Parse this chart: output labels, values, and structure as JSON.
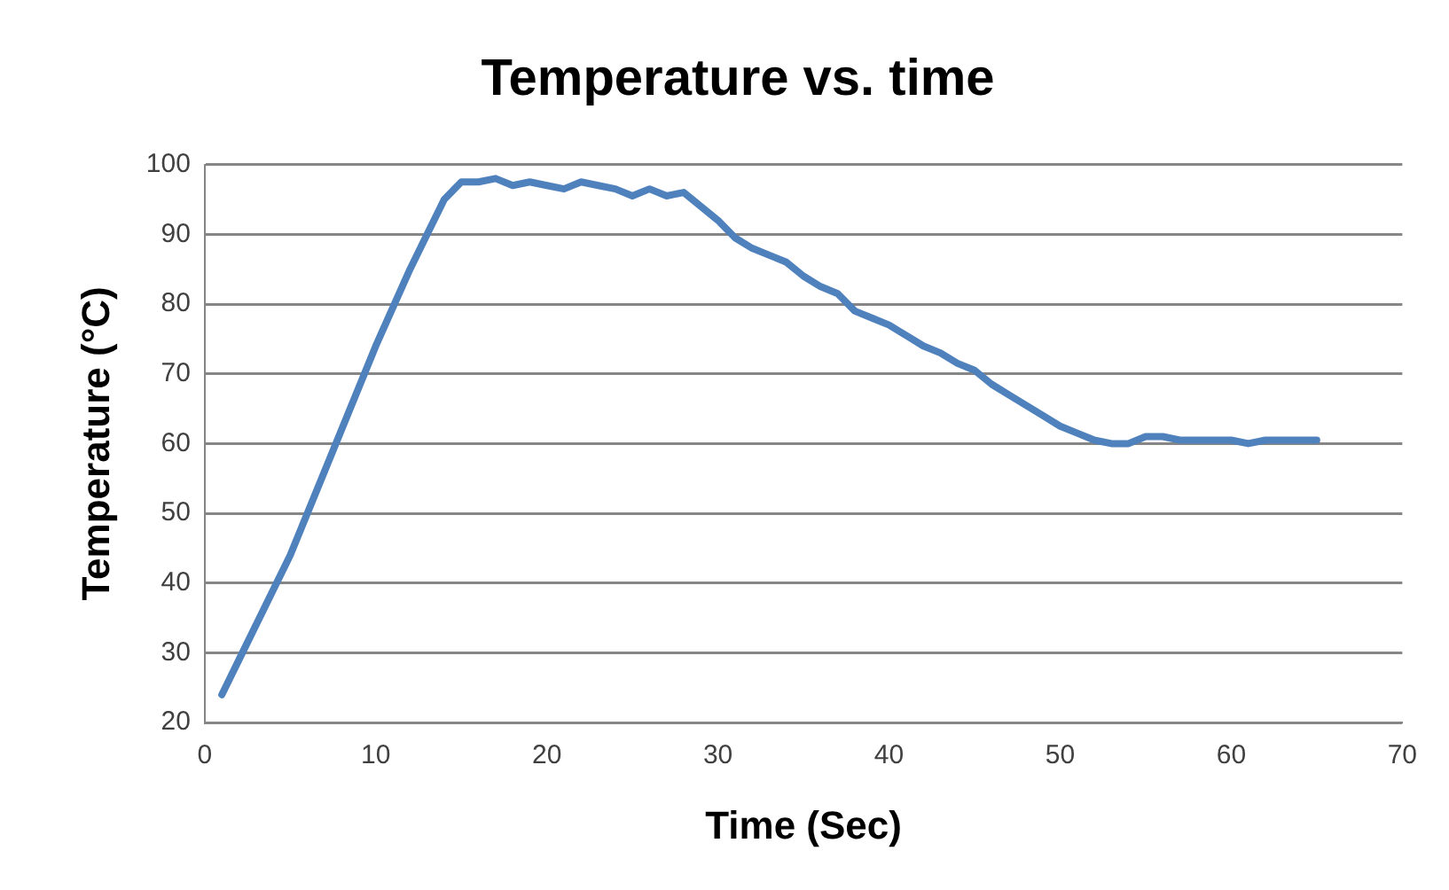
{
  "chart_data": {
    "type": "line",
    "title": "Temperature vs. time",
    "xlabel": "Time (Sec)",
    "ylabel": "Temperature (°C)",
    "series": [
      {
        "color": "#4f81bd",
        "x": [
          1,
          2,
          5,
          10,
          12,
          14,
          15,
          16,
          17,
          18,
          19,
          20,
          21,
          22,
          23,
          24,
          25,
          26,
          27,
          28,
          29,
          30,
          31,
          32,
          33,
          34,
          35,
          36,
          37,
          38,
          39,
          40,
          41,
          42,
          43,
          44,
          45,
          46,
          47,
          48,
          49,
          50,
          51,
          52,
          53,
          54,
          55,
          56,
          57,
          58,
          59,
          60,
          61,
          62,
          63,
          64,
          65
        ],
        "values": [
          24,
          29,
          44,
          74,
          85,
          95,
          97.5,
          97.5,
          98,
          97,
          97.5,
          97,
          96.5,
          97.5,
          97,
          96.5,
          95.5,
          96.5,
          95.5,
          96,
          94,
          92,
          89.5,
          88,
          87,
          86,
          84,
          82.5,
          81.5,
          79,
          78,
          77,
          75.5,
          74,
          73,
          71.5,
          70.5,
          68.5,
          67,
          65.5,
          64,
          62.5,
          61.5,
          60.5,
          60,
          60,
          61,
          61,
          60.5,
          60.5,
          60.5,
          60.5,
          60,
          60.5,
          60.5,
          60.5,
          60.5
        ]
      }
    ],
    "xlim": [
      0,
      70
    ],
    "xticks": [
      0,
      10,
      20,
      30,
      40,
      50,
      60,
      70
    ],
    "ylim": [
      20,
      100
    ],
    "yticks": [
      20,
      30,
      40,
      50,
      60,
      70,
      80,
      90,
      100
    ],
    "grid": "y",
    "legend": false,
    "marker": "none",
    "line_style": "solid"
  }
}
